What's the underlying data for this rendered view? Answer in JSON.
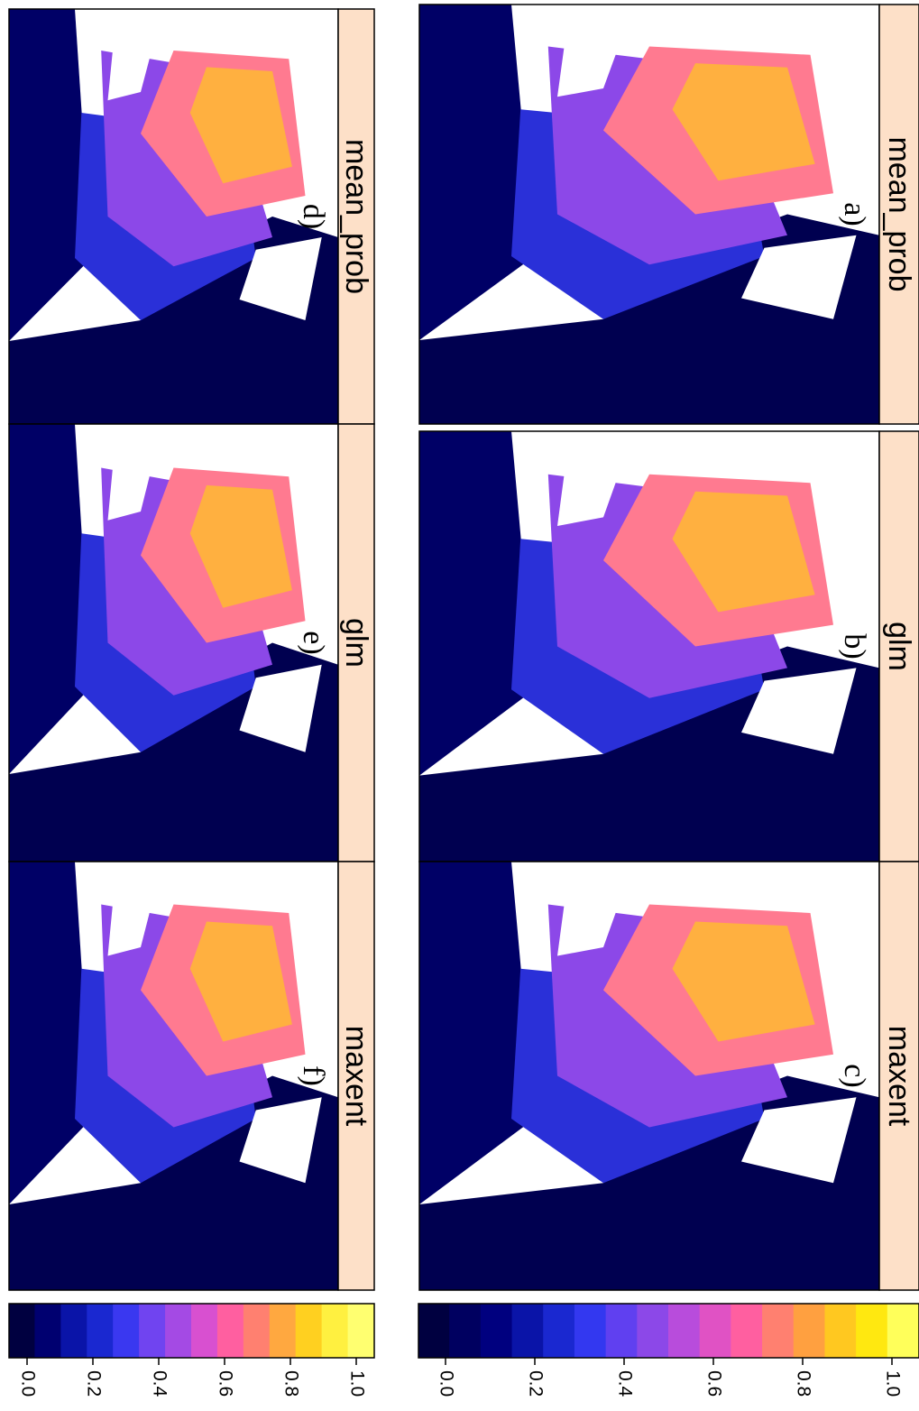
{
  "panels": [
    {
      "label": "a)",
      "title": "mean_prob"
    },
    {
      "label": "b)",
      "title": "glm"
    },
    {
      "label": "c)",
      "title": "maxent"
    },
    {
      "label": "d)",
      "title": "mean_prob"
    },
    {
      "label": "e)",
      "title": "glm"
    },
    {
      "label": "f)",
      "title": "maxent"
    }
  ],
  "colorbars": [
    {
      "lim": [
        0,
        1
      ],
      "ticks": [
        {
          "value": 0,
          "label": "0.0"
        },
        {
          "value": 0.2,
          "label": "0.2"
        },
        {
          "value": 0.4,
          "label": "0.4"
        },
        {
          "value": 0.6,
          "label": "0.6"
        },
        {
          "value": 0.8,
          "label": "0.8"
        },
        {
          "value": 1,
          "label": "1.0"
        }
      ],
      "colors": [
        "#000040",
        "#000060",
        "#00007f",
        "#0a14a8",
        "#1a28d0",
        "#3338f0",
        "#6040f0",
        "#8c48e8",
        "#b84cdc",
        "#e052c4",
        "#ff5fa0",
        "#ff8070",
        "#ffa040",
        "#ffc820",
        "#ffe810",
        "#ffff5a"
      ]
    },
    {
      "lim": [
        0,
        1
      ],
      "ticks": [
        {
          "value": 0,
          "label": "0.0"
        },
        {
          "value": 0.2,
          "label": "0.2"
        },
        {
          "value": 0.4,
          "label": "0.4"
        },
        {
          "value": 0.6,
          "label": "0.6"
        },
        {
          "value": 0.8,
          "label": "0.8"
        },
        {
          "value": 1,
          "label": "1.0"
        }
      ],
      "colors": [
        "#000040",
        "#000070",
        "#0a14a8",
        "#1a28d0",
        "#3a38f0",
        "#7044f0",
        "#a44ae4",
        "#d850d0",
        "#ff5fa0",
        "#ff8070",
        "#ffa840",
        "#ffd020",
        "#fff040",
        "#ffff70"
      ]
    }
  ]
}
